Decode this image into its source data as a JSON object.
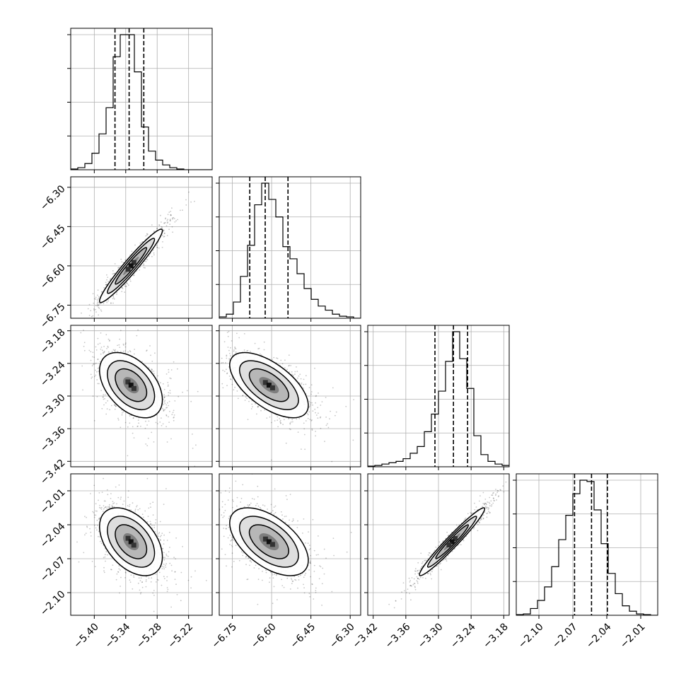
{
  "chart_data": {
    "type": "corner",
    "title": "",
    "grid": true,
    "parameters": [
      {
        "label": "",
        "range": [
          -5.445,
          -5.175
        ],
        "ticks": [
          -5.4,
          -5.34,
          -5.28,
          -5.22
        ],
        "tick_labels": [
          "−5.40",
          "−5.34",
          "−5.28",
          "−5.22"
        ],
        "y_ticks": [
          -6.3,
          -6.45,
          -6.6,
          -6.75
        ],
        "y_tick_labels": [
          "−6.30",
          "−6.45",
          "−6.60",
          "−6.75"
        ],
        "quantiles": [
          -5.3605,
          -5.3335,
          -5.3055
        ],
        "histogram": {
          "bins": [
            -5.445,
            -5.4315,
            -5.418,
            -5.4045,
            -5.391,
            -5.3775,
            -5.364,
            -5.3505,
            -5.337,
            -5.3235,
            -5.31,
            -5.2965,
            -5.283,
            -5.2695,
            -5.256,
            -5.2425,
            -5.229,
            -5.2155,
            -5.202,
            -5.1885,
            -5.175
          ],
          "counts": [
            0.5,
            1.5,
            4.5,
            12,
            26,
            45,
            82,
            98,
            98,
            71,
            31,
            13.5,
            7,
            3.5,
            1.5,
            0.5,
            0,
            0,
            0,
            0
          ]
        }
      },
      {
        "label": "",
        "range": [
          -6.8,
          -6.26
        ],
        "ticks": [
          -6.75,
          -6.6,
          -6.45,
          -6.3
        ],
        "tick_labels": [
          "−6.75",
          "−6.60",
          "−6.45",
          "−6.30"
        ],
        "quantiles": [
          -6.6835,
          -6.6245,
          -6.5375
        ],
        "histogram": {
          "bins": [
            -6.8,
            -6.773,
            -6.746,
            -6.719,
            -6.692,
            -6.665,
            -6.638,
            -6.611,
            -6.584,
            -6.557,
            -6.53,
            -6.503,
            -6.476,
            -6.449,
            -6.422,
            -6.395,
            -6.368,
            -6.341,
            -6.314,
            -6.287,
            -6.26
          ],
          "counts": [
            1,
            3,
            12,
            31,
            54,
            84,
            100,
            88,
            75,
            53,
            44,
            33,
            22,
            14,
            9,
            6,
            3,
            1.5,
            1,
            0
          ]
        }
      },
      {
        "label": "",
        "range": [
          -3.43,
          -3.17
        ],
        "ticks": [
          -3.42,
          -3.36,
          -3.3,
          -3.24,
          -3.18
        ],
        "tick_labels": [
          "−3.42",
          "−3.36",
          "−3.30",
          "−3.24",
          "−3.18"
        ],
        "y_ticks": [
          -3.18,
          -3.24,
          -3.3,
          -3.36,
          -3.42
        ],
        "y_tick_labels": [
          "−3.18",
          "−3.24",
          "−3.30",
          "−3.36",
          "−3.42"
        ],
        "quantiles": [
          -3.3065,
          -3.2725,
          -3.2465
        ],
        "histogram": {
          "bins": [
            -3.43,
            -3.417,
            -3.404,
            -3.391,
            -3.378,
            -3.365,
            -3.352,
            -3.339,
            -3.326,
            -3.313,
            -3.3,
            -3.287,
            -3.274,
            -3.261,
            -3.248,
            -3.235,
            -3.222,
            -3.209,
            -3.196,
            -3.183,
            -3.17
          ],
          "counts": [
            0.5,
            1,
            2,
            3,
            4,
            6,
            10,
            15,
            26,
            39,
            56,
            78,
            100,
            80,
            58,
            23,
            9,
            4,
            2,
            1
          ]
        }
      },
      {
        "label": "",
        "range": [
          -2.12,
          -1.995
        ],
        "ticks": [
          -2.1,
          -2.07,
          -2.04,
          -2.01
        ],
        "tick_labels": [
          "−2.10",
          "−2.07",
          "−2.04",
          "−2.01"
        ],
        "y_ticks": [
          -2.01,
          -2.04,
          -2.07,
          -2.1
        ],
        "y_tick_labels": [
          "−2.01",
          "−2.04",
          "−2.07",
          "−2.10"
        ],
        "quantiles": [
          -2.0685,
          -2.0535,
          -2.0395
        ],
        "histogram": {
          "bins": [
            -2.12,
            -2.11375,
            -2.1075,
            -2.10125,
            -2.095,
            -2.08875,
            -2.0825,
            -2.07625,
            -2.07,
            -2.06375,
            -2.0575,
            -2.05125,
            -2.045,
            -2.03875,
            -2.0325,
            -2.02625,
            -2.02,
            -2.01375,
            -2.0075,
            -2.00125,
            -1.995
          ],
          "counts": [
            0.5,
            1,
            5,
            11,
            21,
            36,
            56,
            74,
            90,
            100,
            99,
            78,
            53,
            31,
            16,
            7,
            3,
            1,
            0.5,
            0
          ]
        }
      }
    ],
    "pairs": [
      {
        "x_param": 0,
        "y_param": 1,
        "mean": [
          -5.33,
          -6.6
        ],
        "std": [
          0.03,
          0.07
        ],
        "rho": 0.96
      },
      {
        "x_param": 0,
        "y_param": 2,
        "mean": [
          -5.33,
          -3.28
        ],
        "std": [
          0.03,
          0.03
        ],
        "rho": -0.45
      },
      {
        "x_param": 1,
        "y_param": 2,
        "mean": [
          -6.61,
          -3.28
        ],
        "std": [
          0.075,
          0.03
        ],
        "rho": -0.62
      },
      {
        "x_param": 0,
        "y_param": 3,
        "mean": [
          -5.33,
          -2.055
        ],
        "std": [
          0.03,
          0.015
        ],
        "rho": -0.45
      },
      {
        "x_param": 1,
        "y_param": 3,
        "mean": [
          -6.61,
          -2.055
        ],
        "std": [
          0.075,
          0.015
        ],
        "rho": -0.55
      },
      {
        "x_param": 2,
        "y_param": 3,
        "mean": [
          -3.275,
          -2.055
        ],
        "std": [
          0.03,
          0.015
        ],
        "rho": 0.97
      }
    ]
  }
}
